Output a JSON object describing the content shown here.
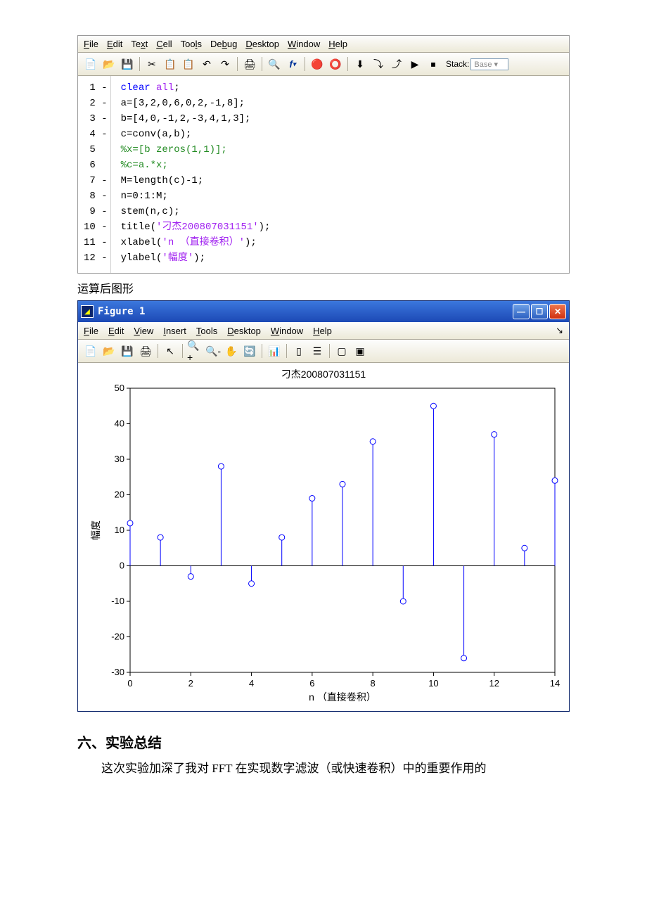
{
  "editor": {
    "menus": [
      "File",
      "Edit",
      "Text",
      "Cell",
      "Tools",
      "Debug",
      "Desktop",
      "Window",
      "Help"
    ],
    "underlines": [
      0,
      0,
      2,
      0,
      3,
      2,
      0,
      0,
      0
    ],
    "stack_label": "Stack:",
    "stack_value": "Base",
    "lines": [
      {
        "n": "1",
        "dash": true,
        "seg": [
          {
            "t": "clear ",
            "c": "kw"
          },
          {
            "t": "all",
            "c": "str"
          },
          {
            "t": ";",
            "c": ""
          }
        ]
      },
      {
        "n": "2",
        "dash": true,
        "seg": [
          {
            "t": "a=[3,2,0,6,0,2,-1,8];",
            "c": ""
          }
        ]
      },
      {
        "n": "3",
        "dash": true,
        "seg": [
          {
            "t": "b=[4,0,-1,2,-3,4,1,3];",
            "c": ""
          }
        ]
      },
      {
        "n": "4",
        "dash": true,
        "seg": [
          {
            "t": "c=conv(a,b);",
            "c": ""
          }
        ]
      },
      {
        "n": "5",
        "dash": false,
        "seg": [
          {
            "t": "%x=[b zeros(1,1)];",
            "c": "cm"
          }
        ]
      },
      {
        "n": "6",
        "dash": false,
        "seg": [
          {
            "t": "%c=a.*x;",
            "c": "cm"
          }
        ]
      },
      {
        "n": "7",
        "dash": true,
        "seg": [
          {
            "t": "M=length(c)-1;",
            "c": ""
          }
        ]
      },
      {
        "n": "8",
        "dash": true,
        "seg": [
          {
            "t": "n=0:1:M;",
            "c": ""
          }
        ]
      },
      {
        "n": "9",
        "dash": true,
        "seg": [
          {
            "t": "stem(n,c);",
            "c": ""
          }
        ]
      },
      {
        "n": "10",
        "dash": true,
        "seg": [
          {
            "t": "title(",
            "c": ""
          },
          {
            "t": "'刁杰200807031151'",
            "c": "str"
          },
          {
            "t": ");",
            "c": ""
          }
        ]
      },
      {
        "n": "11",
        "dash": true,
        "seg": [
          {
            "t": "xlabel(",
            "c": ""
          },
          {
            "t": "'n （直接卷积）'",
            "c": "str"
          },
          {
            "t": ");",
            "c": ""
          }
        ]
      },
      {
        "n": "12",
        "dash": true,
        "seg": [
          {
            "t": "ylabel(",
            "c": ""
          },
          {
            "t": "'幅度'",
            "c": "str"
          },
          {
            "t": ");",
            "c": ""
          }
        ]
      }
    ]
  },
  "caption": "运算后图形",
  "figure": {
    "title": "Figure 1",
    "menus": [
      "File",
      "Edit",
      "View",
      "Insert",
      "Tools",
      "Desktop",
      "Window",
      "Help"
    ],
    "underlines": [
      0,
      0,
      0,
      0,
      0,
      0,
      0,
      0
    ],
    "chart": {
      "title": "刁杰200807031151",
      "xlabel": "n （直接卷积）",
      "ylabel": "幅度",
      "xlim": [
        0,
        14
      ],
      "ylim": [
        -30,
        50
      ],
      "yticks": [
        -30,
        -20,
        -10,
        0,
        10,
        20,
        30,
        40,
        50
      ],
      "xticks": [
        0,
        2,
        4,
        6,
        8,
        10,
        12,
        14
      ],
      "axis_color": "#000000",
      "stem_color": "#0000ff",
      "marker": "circle",
      "marker_size": 4,
      "data": [
        {
          "x": 0,
          "y": 12
        },
        {
          "x": 1,
          "y": 8
        },
        {
          "x": 2,
          "y": -3
        },
        {
          "x": 3,
          "y": 28
        },
        {
          "x": 4,
          "y": -5
        },
        {
          "x": 5,
          "y": 8
        },
        {
          "x": 6,
          "y": 19
        },
        {
          "x": 7,
          "y": 23
        },
        {
          "x": 8,
          "y": 35
        },
        {
          "x": 9,
          "y": -10
        },
        {
          "x": 10,
          "y": 45
        },
        {
          "x": 11,
          "y": -26
        },
        {
          "x": 12,
          "y": 37
        },
        {
          "x": 13,
          "y": 5
        },
        {
          "x": 14,
          "y": 24
        }
      ]
    }
  },
  "section_heading": "六、实验总结",
  "section_body": "这次实验加深了我对 FFT 在实现数字滤波（或快速卷积）中的重要作用的"
}
